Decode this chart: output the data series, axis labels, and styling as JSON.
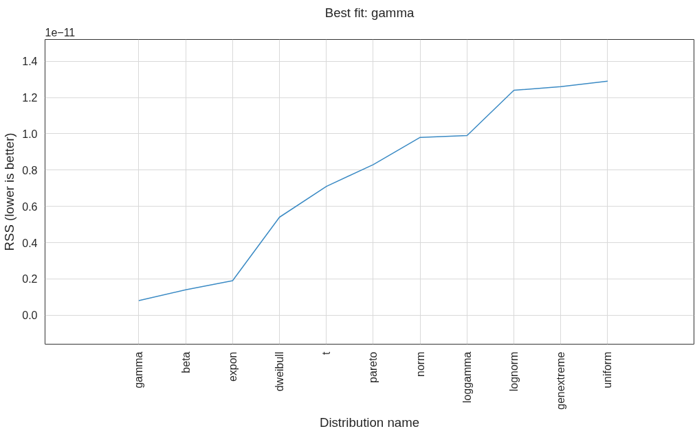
{
  "chart_data": {
    "type": "line",
    "title": "Best fit: gamma",
    "xlabel": "Distribution name",
    "ylabel": "RSS (lower is better)",
    "annotations": [
      "1e−11"
    ],
    "categories": [
      "gamma",
      "beta",
      "expon",
      "dweibull",
      "t",
      "pareto",
      "norm",
      "loggamma",
      "lognorm",
      "genextreme",
      "uniform"
    ],
    "series": [
      {
        "color": "#3a8ac4",
        "values": [
          0.08,
          0.14,
          0.19,
          0.54,
          0.71,
          0.83,
          0.98,
          0.99,
          1.24,
          1.26,
          1.29
        ]
      }
    ],
    "ylim": [
      -0.16,
      1.52
    ],
    "yticks": [
      {
        "value": 0,
        "label": "0.0"
      },
      0.2,
      0.4,
      0.6,
      0.8,
      {
        "value": 1,
        "label": "1.0"
      },
      1.2,
      1.4
    ],
    "grid": true,
    "marker": "none",
    "line_style": "solid"
  }
}
